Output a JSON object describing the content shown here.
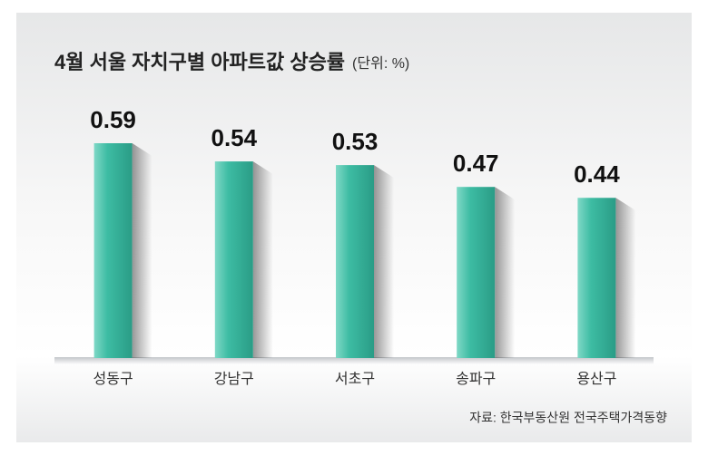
{
  "chart_data": {
    "type": "bar",
    "title": "4월 서울 자치구별 아파트값 상승률",
    "subtitle": "(단위: %)",
    "categories": [
      "성동구",
      "강남구",
      "서초구",
      "송파구",
      "용산구"
    ],
    "values": [
      0.59,
      0.54,
      0.53,
      0.47,
      0.44
    ],
    "color": "#3dbca3",
    "source": "자료: 한국부동산원 전국주택가격동향"
  }
}
